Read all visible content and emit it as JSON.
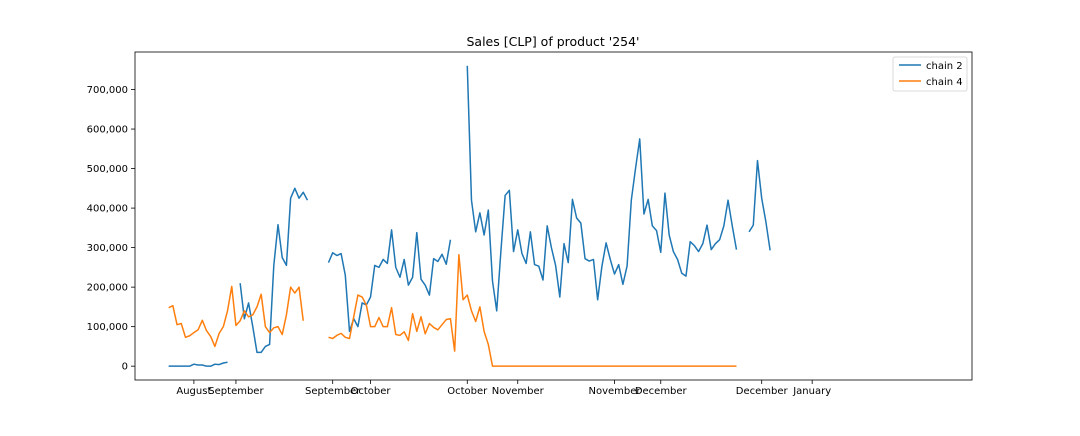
{
  "chart_data": {
    "type": "line",
    "title": "Sales [CLP] of product '254'",
    "xlabel": "",
    "ylabel": "",
    "xlim": [
      -8,
      191
    ],
    "ylim": [
      -35000,
      795000
    ],
    "grid": false,
    "legend_placement": "top-right",
    "x_tick_positions": [
      6,
      16,
      39,
      48,
      71,
      83,
      106,
      117,
      141,
      153
    ],
    "x_tick_labels": [
      "August",
      "September",
      "September",
      "October",
      "October",
      "November",
      "November",
      "December",
      "December",
      "January"
    ],
    "y_ticks": [
      0,
      100000,
      200000,
      300000,
      400000,
      500000,
      600000,
      700000
    ],
    "y_tick_labels": [
      "0",
      "100,000",
      "200,000",
      "300,000",
      "400,000",
      "500,000",
      "600,000",
      "700,000"
    ],
    "series": [
      {
        "name": "chain 2",
        "color": "#1f77b4",
        "segments": [
          {
            "x_start": 0,
            "values": [
              0,
              0,
              0,
              0,
              0,
              0,
              5000,
              3000,
              3000,
              0,
              0,
              5000,
              4000,
              8000,
              10000
            ]
          },
          {
            "x_start": 17,
            "values": [
              210000,
              120000,
              160000,
              100000,
              35000,
              35000,
              50000,
              55000,
              255000,
              358000,
              275000,
              255000,
              425000,
              450000,
              425000,
              440000,
              420000
            ]
          },
          {
            "x_start": 38,
            "values": [
              262000,
              287000,
              280000,
              285000,
              230000,
              88000,
              120000,
              100000,
              160000,
              155000,
              175000,
              255000,
              250000,
              270000,
              260000,
              345000,
              250000,
              225000,
              270000,
              205000,
              225000,
              338000,
              220000,
              205000,
              180000,
              272000,
              265000,
              283000,
              258000,
              320000
            ]
          },
          {
            "x_start": 71,
            "values": [
              760000,
              420000,
              340000,
              388000,
              332000,
              395000,
              215000,
              140000,
              292000,
              432000,
              445000,
              290000,
              345000,
              285000,
              260000,
              340000,
              257000,
              253000,
              218000,
              355000,
              300000,
              255000,
              175000,
              310000,
              262000,
              422000,
              375000,
              362000,
              272000,
              266000,
              270000,
              168000,
              252000,
              312000,
              270000,
              233000,
              257000,
              207000,
              254000,
              420000,
              500000,
              575000,
              385000,
              422000,
              355000,
              343000,
              288000,
              438000,
              332000,
              290000,
              270000,
              235000,
              228000,
              315000,
              305000,
              290000,
              310000,
              357000,
              295000,
              310000,
              320000,
              355000,
              420000,
              355000,
              295000
            ]
          },
          {
            "x_start": 138,
            "values": [
              340000,
              357000,
              520000,
              425000,
              365000,
              293000
            ]
          }
        ]
      },
      {
        "name": "chain 4",
        "color": "#ff7f0e",
        "segments": [
          {
            "x_start": 0,
            "values": [
              148000,
              153000,
              105000,
              108000,
              73000,
              77000,
              85000,
              92000,
              116000,
              90000,
              75000,
              50000,
              83000,
              100000,
              140000,
              202000,
              103000,
              115000,
              140000,
              125000,
              130000,
              150000,
              182000,
              100000,
              85000,
              97000,
              100000,
              80000,
              130000,
              200000,
              185000,
              200000,
              115000
            ]
          },
          {
            "x_start": 38,
            "values": [
              73000,
              70000,
              78000,
              83000,
              73000,
              70000,
              125000,
              180000,
              175000,
              155000,
              100000,
              100000,
              123000,
              100000,
              100000,
              148000,
              80000,
              78000,
              87000,
              65000,
              133000,
              88000,
              125000,
              82000,
              108000,
              98000,
              92000,
              105000,
              118000,
              120000,
              38000,
              282000,
              168000,
              180000,
              140000,
              113000,
              150000,
              88000,
              55000,
              0,
              0,
              0,
              0,
              0,
              0,
              0,
              0,
              0,
              0,
              0,
              0,
              0,
              0,
              0,
              0,
              0,
              0,
              0,
              0,
              0,
              0,
              0,
              0,
              0,
              0,
              0,
              0,
              0,
              0,
              0,
              0,
              0,
              0,
              0,
              0,
              0,
              0,
              0,
              0,
              0,
              0,
              0,
              0,
              0,
              0,
              0,
              0,
              0,
              0,
              0,
              0,
              0,
              0,
              0,
              0,
              0,
              0,
              0
            ]
          }
        ]
      }
    ]
  }
}
